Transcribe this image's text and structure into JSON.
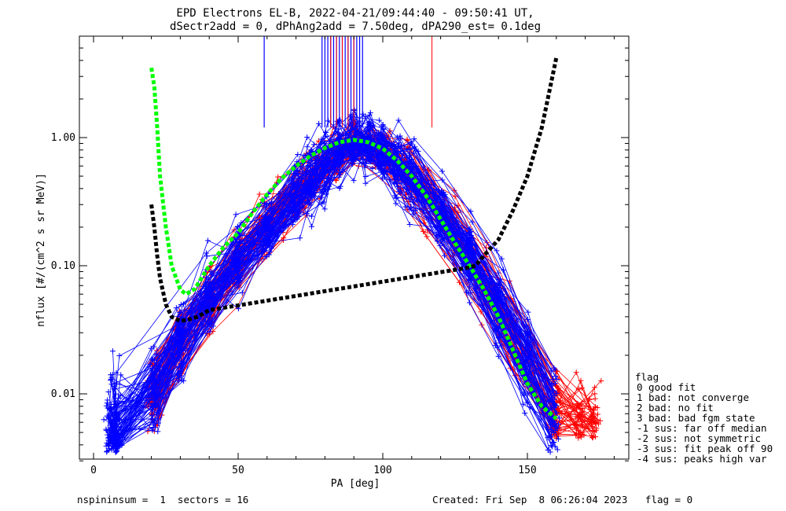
{
  "chart_data": {
    "type": "line",
    "title": "EPD Electrons EL-B, 2022-04-21/09:44:40 - 09:50:41 UT,",
    "subtitle": "dSectr2add = 0, dPhAng2add = 7.50deg, dPA290_est=   0.1deg",
    "xlabel": "PA [deg]",
    "ylabel": "nflux [#/(cm^2 s sr MeV)]",
    "xlim": [
      -3,
      187
    ],
    "ylim": [
      0.003,
      5.5
    ],
    "yscale": "log",
    "x_ticks": [
      0,
      50,
      100,
      150
    ],
    "x_tick_labels": [
      "0",
      "50",
      "100",
      "150"
    ],
    "y_ticks": [
      0.01,
      0.1,
      1.0
    ],
    "y_tick_labels": [
      "0.01",
      "0.10",
      "1.00"
    ],
    "colors": {
      "red": "#ff0000",
      "blue": "#0000ff",
      "green": "#00ff00",
      "black": "#000000"
    },
    "series": [
      {
        "color": "green",
        "style": "thick-dashed",
        "x": [
          20,
          21,
          22,
          23,
          25,
          27,
          30,
          32,
          35,
          40,
          45,
          50,
          55,
          60,
          65,
          70,
          75,
          80,
          85,
          90,
          95,
          100,
          105,
          110,
          115,
          120,
          125,
          130,
          135,
          140,
          145,
          150,
          155,
          160
        ],
        "y": [
          3.5,
          2.5,
          1.2,
          0.5,
          0.2,
          0.1,
          0.065,
          0.06,
          0.066,
          0.1,
          0.14,
          0.18,
          0.26,
          0.36,
          0.48,
          0.6,
          0.72,
          0.83,
          0.92,
          0.96,
          0.92,
          0.82,
          0.66,
          0.5,
          0.35,
          0.23,
          0.15,
          0.1,
          0.065,
          0.04,
          0.022,
          0.012,
          0.008,
          0.0064
        ]
      },
      {
        "color": "black",
        "style": "thick-dashed",
        "x": [
          20,
          21,
          22,
          23,
          25,
          27,
          30,
          33,
          36,
          40,
          130,
          132,
          135,
          140,
          145,
          150,
          155,
          160
        ],
        "y": [
          0.3,
          0.2,
          0.12,
          0.08,
          0.05,
          0.04,
          0.037,
          0.038,
          0.04,
          0.045,
          0.097,
          0.1,
          0.12,
          0.16,
          0.27,
          0.5,
          1.2,
          4.2
        ]
      }
    ],
    "vertical_segments": {
      "description": "vertical lines from ~1.2 to top of plot",
      "blue_x": [
        59,
        79,
        80,
        81,
        82,
        83,
        84,
        85,
        86,
        87,
        88,
        89,
        90,
        91,
        92,
        93
      ],
      "red_x": [
        82,
        84,
        86,
        88,
        90,
        117
      ]
    },
    "legend": {
      "placement": "bottom-right outside",
      "title": "flag",
      "entries": [
        " 0 good fit",
        " 1 bad: not converge",
        " 2 bad: no fit",
        " 3 bad: bad fgm state",
        "-1 sus: far off median",
        "-2 sus: not symmetric",
        "-3 sus: fit peak off 90",
        "-4 sus: peaks high var"
      ]
    }
  },
  "footer": {
    "left": "nspininsum =  1  sectors = 16",
    "right": "Created: Fri Sep  8 06:26:04 2023   flag = 0"
  }
}
